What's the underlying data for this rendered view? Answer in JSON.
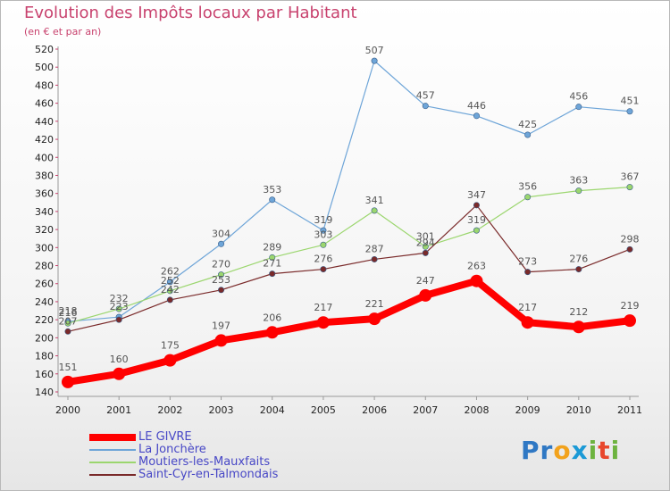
{
  "chart_data": {
    "type": "line",
    "title": "Evolution des Impôts locaux par Habitant",
    "subtitle": "(en € et par an)",
    "xlabel": "",
    "ylabel": "",
    "categories": [
      "2000",
      "2001",
      "2002",
      "2003",
      "2004",
      "2005",
      "2006",
      "2007",
      "2008",
      "2009",
      "2010",
      "2011"
    ],
    "ylim": [
      140,
      520
    ],
    "yticks": [
      140,
      160,
      180,
      200,
      220,
      240,
      260,
      280,
      300,
      320,
      340,
      360,
      380,
      400,
      420,
      440,
      460,
      480,
      500,
      520
    ],
    "grid": false,
    "legend_position": "bottom-left",
    "series": [
      {
        "name": "LE GIVRE",
        "color": "#ff0000",
        "values": [
          151,
          160,
          175,
          197,
          206,
          217,
          221,
          247,
          263,
          217,
          212,
          219
        ],
        "labels": [
          "151",
          "160",
          "175",
          "197",
          "206",
          "217",
          "221",
          "247",
          "263",
          "217",
          "212",
          "219"
        ]
      },
      {
        "name": "La Jonchère",
        "color": "#6ea5d8",
        "values": [
          218,
          223,
          262,
          304,
          353,
          319,
          507,
          457,
          446,
          425,
          456,
          451
        ],
        "labels": [
          "218",
          "223",
          "262",
          "304",
          "353",
          "319",
          "507",
          "457",
          "446",
          "425",
          "456",
          "451"
        ]
      },
      {
        "name": "Moutiers-les-Mauxfaits",
        "color": "#9bd66e",
        "values": [
          216,
          232,
          252,
          270,
          289,
          303,
          341,
          301,
          319,
          356,
          363,
          367
        ],
        "labels": [
          "216",
          "232",
          "252",
          "270",
          "289",
          "303",
          "341",
          "301",
          "319",
          "356",
          "363",
          "367"
        ]
      },
      {
        "name": "Saint-Cyr-en-Talmondais",
        "color": "#7a2a2a",
        "values": [
          207,
          220,
          242,
          253,
          271,
          276,
          287,
          294,
          347,
          273,
          276,
          298
        ],
        "labels": [
          "207",
          "",
          "242",
          "253",
          "271",
          "276",
          "287",
          "294",
          "347",
          "273",
          "276",
          "298"
        ]
      }
    ]
  },
  "logo": {
    "text": [
      "P",
      "r",
      "o",
      "x",
      "i",
      "t",
      "i"
    ]
  }
}
